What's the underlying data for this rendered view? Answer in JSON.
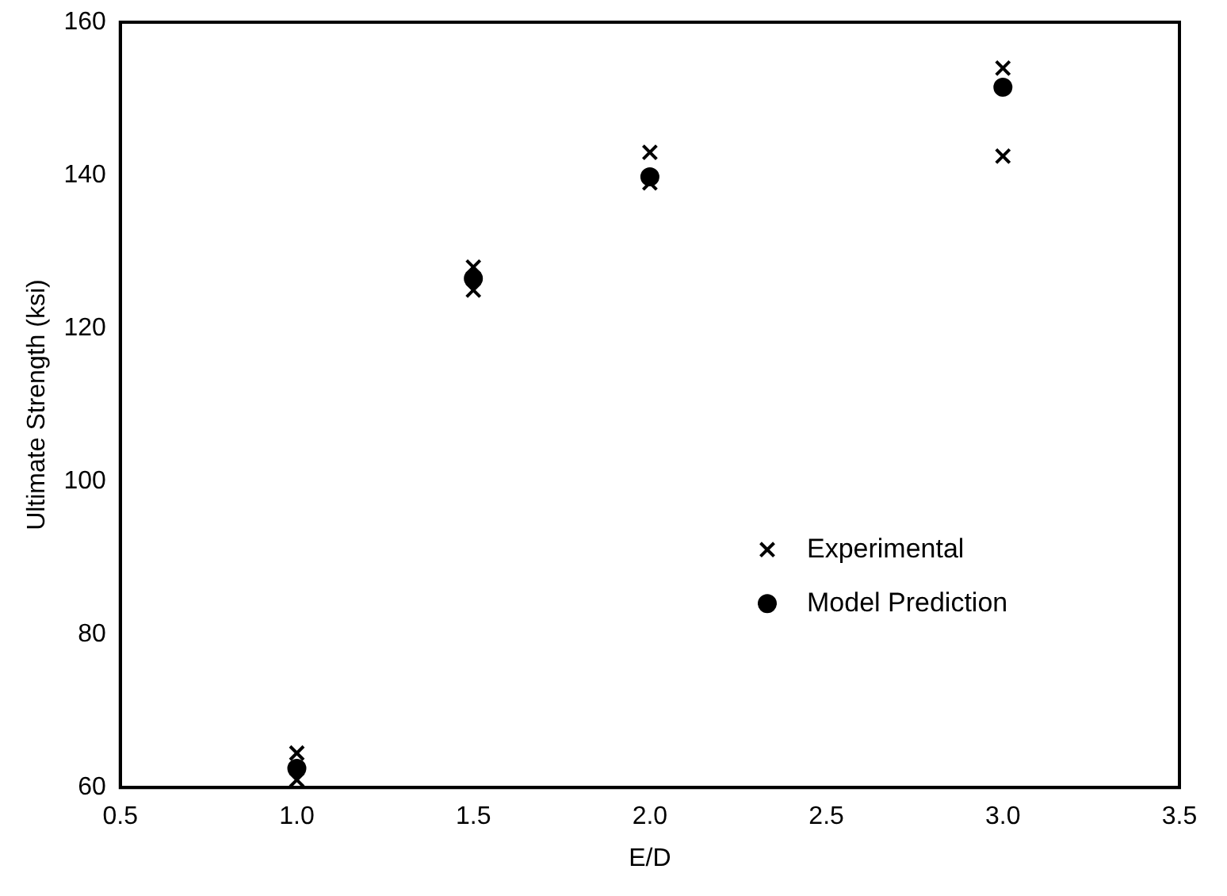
{
  "chart_data": {
    "type": "scatter",
    "xlabel": "E/D",
    "ylabel": "Ultimate Strength (ksi)",
    "xlim": [
      0.5,
      3.5
    ],
    "xticks": [
      0.5,
      {
        "value": 1,
        "label": "1.0"
      },
      1.5,
      {
        "value": 2,
        "label": "2.0"
      },
      2.5,
      {
        "value": 3,
        "label": "3.0"
      },
      3.5
    ],
    "ylim": [
      60,
      160
    ],
    "yticks": [
      60,
      80,
      100,
      120,
      140,
      160
    ],
    "grid": false,
    "legend": "bottom right",
    "series": [
      {
        "name": "Experimental",
        "color": "#000000",
        "marker": "cross",
        "x": [
          1.0,
          1.0,
          1.5,
          1.5,
          2.0,
          2.0,
          3.0,
          3.0
        ],
        "values": [
          64.5,
          61,
          128,
          125,
          143,
          139,
          154,
          142.5
        ]
      },
      {
        "name": "Model Prediction",
        "color": "#000000",
        "marker": "circle",
        "x": [
          1.0,
          1.5,
          2.0,
          3.0
        ],
        "values": [
          62.5,
          126.5,
          139.8,
          151.5
        ]
      }
    ]
  }
}
